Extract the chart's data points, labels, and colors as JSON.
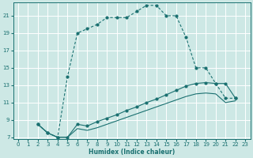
{
  "xlabel": "Humidex (Indice chaleur)",
  "bg_color": "#cde8e5",
  "grid_color": "#ffffff",
  "line_color": "#1a7070",
  "xlim": [
    -0.5,
    23.5
  ],
  "ylim": [
    6.8,
    22.5
  ],
  "xticks": [
    0,
    1,
    2,
    3,
    4,
    5,
    6,
    7,
    8,
    9,
    10,
    11,
    12,
    13,
    14,
    15,
    16,
    17,
    18,
    19,
    20,
    21,
    22,
    23
  ],
  "yticks": [
    7,
    9,
    11,
    13,
    15,
    17,
    19,
    21
  ],
  "curve1_x": [
    2,
    3,
    4,
    5,
    6,
    7,
    8,
    9,
    10,
    11,
    12,
    13,
    14,
    15,
    16,
    17,
    18,
    19,
    20,
    21,
    22
  ],
  "curve1_y": [
    8.5,
    7.5,
    7.0,
    14.0,
    19.0,
    19.5,
    20.0,
    20.8,
    20.8,
    20.8,
    21.5,
    22.2,
    22.2,
    21.0,
    21.0,
    18.5,
    15.0,
    15.0,
    13.2,
    11.5,
    11.5
  ],
  "curve2_x": [
    2,
    3,
    4,
    5,
    6,
    7,
    8,
    9,
    10,
    11,
    12,
    13,
    14,
    15,
    16,
    17,
    18,
    19,
    20,
    21,
    22
  ],
  "curve2_y": [
    8.5,
    7.5,
    7.0,
    7.0,
    8.5,
    8.3,
    8.8,
    9.2,
    9.6,
    10.1,
    10.5,
    11.0,
    11.4,
    11.9,
    12.4,
    12.9,
    13.2,
    13.3,
    13.2,
    13.2,
    11.5
  ],
  "curve3_x": [
    2,
    3,
    4,
    5,
    6,
    7,
    8,
    9,
    10,
    11,
    12,
    13,
    14,
    15,
    16,
    17,
    18,
    19,
    20,
    21,
    22
  ],
  "curve3_y": [
    8.5,
    7.5,
    7.0,
    7.0,
    8.0,
    7.8,
    8.1,
    8.5,
    8.9,
    9.3,
    9.7,
    10.1,
    10.5,
    10.9,
    11.3,
    11.7,
    12.0,
    12.1,
    12.0,
    11.0,
    11.2
  ]
}
